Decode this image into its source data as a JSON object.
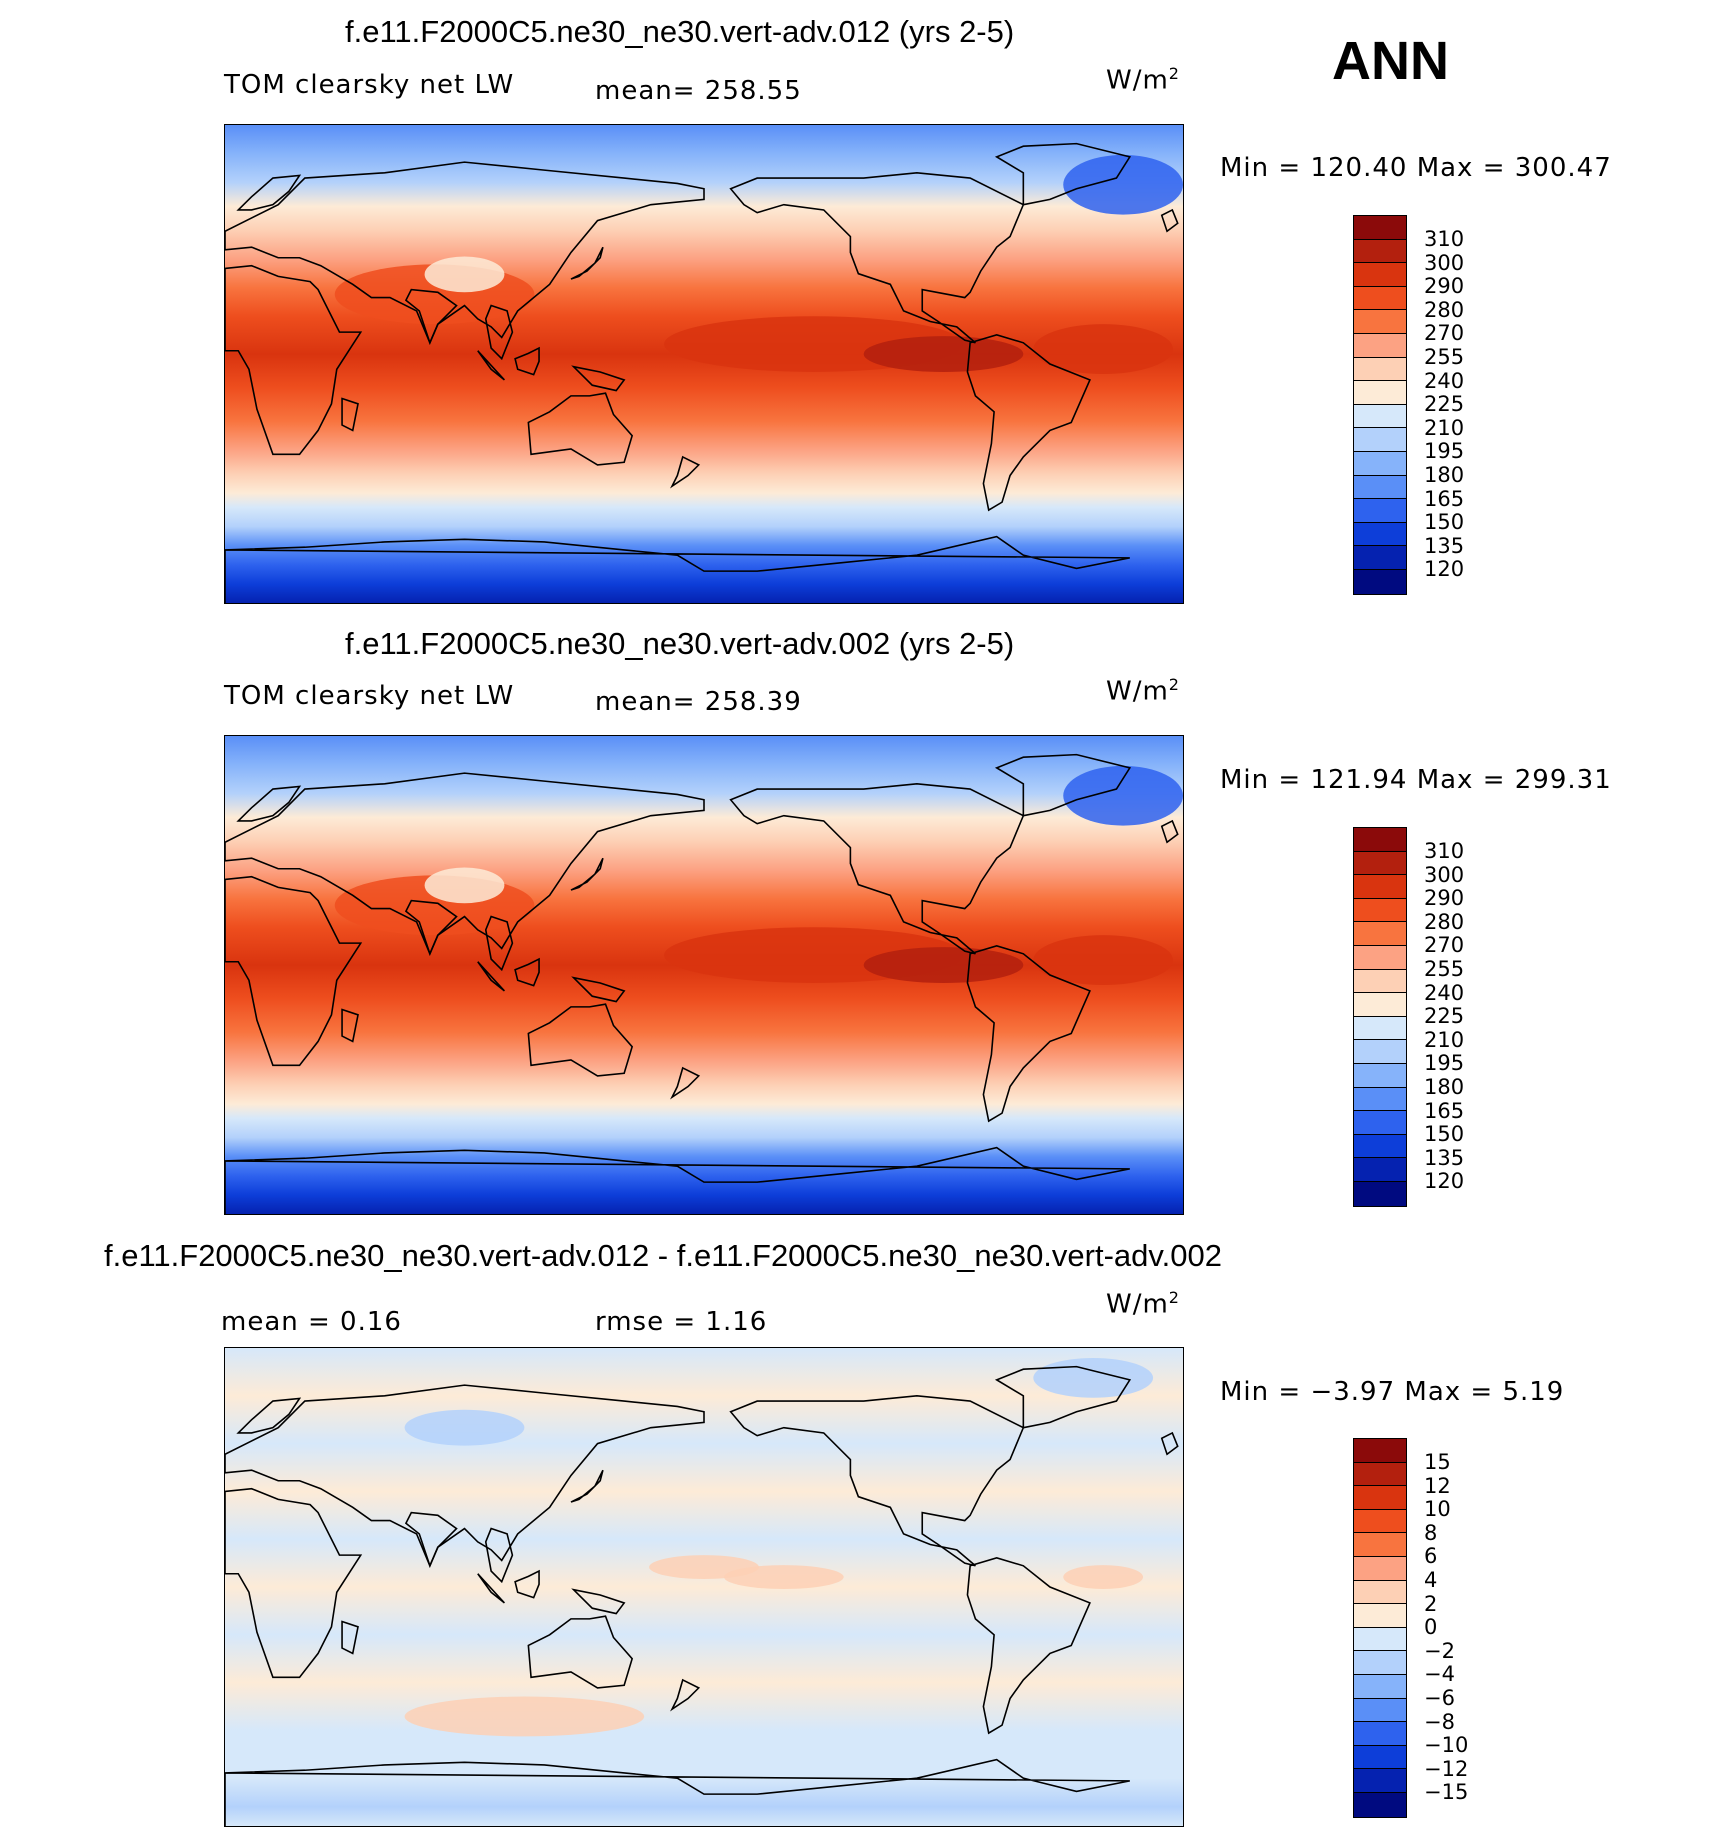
{
  "season": "ANN",
  "panels": [
    {
      "title": "f.e11.F2000C5.ne30_ne30.vert-adv.012 (yrs 2-5)",
      "variable": "TOM clearsky net LW",
      "stat1": "mean=  258.55",
      "stat2": "",
      "units_base": "W/m",
      "units_exp": "2",
      "minmax": "Min = 120.40 Max = 300.47",
      "colorbar": {
        "labels": [
          "310",
          "300",
          "290",
          "280",
          "270",
          "255",
          "240",
          "225",
          "210",
          "195",
          "180",
          "165",
          "150",
          "135",
          "120"
        ],
        "colors": [
          "#8b0a0a",
          "#b3200e",
          "#d9340f",
          "#ee4e1e",
          "#f8743f",
          "#fca283",
          "#fdd0b5",
          "#fdebd7",
          "#d6e8fa",
          "#b3d1fb",
          "#86b3fa",
          "#5a8ff7",
          "#2e62ee",
          "#0d3ed9",
          "#0522b0",
          "#000a80"
        ]
      },
      "map_style": "absolute"
    },
    {
      "title": "f.e11.F2000C5.ne30_ne30.vert-adv.002 (yrs 2-5)",
      "variable": "TOM clearsky net LW",
      "stat1": "mean=  258.39",
      "stat2": "",
      "units_base": "W/m",
      "units_exp": "2",
      "minmax": "Min = 121.94 Max = 299.31",
      "colorbar": {
        "labels": [
          "310",
          "300",
          "290",
          "280",
          "270",
          "255",
          "240",
          "225",
          "210",
          "195",
          "180",
          "165",
          "150",
          "135",
          "120"
        ],
        "colors": [
          "#8b0a0a",
          "#b3200e",
          "#d9340f",
          "#ee4e1e",
          "#f8743f",
          "#fca283",
          "#fdd0b5",
          "#fdebd7",
          "#d6e8fa",
          "#b3d1fb",
          "#86b3fa",
          "#5a8ff7",
          "#2e62ee",
          "#0d3ed9",
          "#0522b0",
          "#000a80"
        ]
      },
      "map_style": "absolute"
    },
    {
      "title": "f.e11.F2000C5.ne30_ne30.vert-adv.012 - f.e11.F2000C5.ne30_ne30.vert-adv.002",
      "variable": "",
      "stat1": "mean =    0.16",
      "stat2": "rmse =    1.16",
      "units_base": "W/m",
      "units_exp": "2",
      "minmax": "Min =  −3.97 Max =    5.19",
      "colorbar": {
        "labels": [
          "15",
          "12",
          "10",
          "8",
          "6",
          "4",
          "2",
          "0",
          "−2",
          "−4",
          "−6",
          "−8",
          "−10",
          "−12",
          "−15"
        ],
        "colors": [
          "#8b0a0a",
          "#b3200e",
          "#d9340f",
          "#ee4e1e",
          "#f8743f",
          "#fca283",
          "#fdd0b5",
          "#fdebd7",
          "#d6e8fa",
          "#b3d1fb",
          "#86b3fa",
          "#5a8ff7",
          "#2e62ee",
          "#0d3ed9",
          "#0522b0",
          "#000a80"
        ]
      },
      "map_style": "difference"
    }
  ]
}
